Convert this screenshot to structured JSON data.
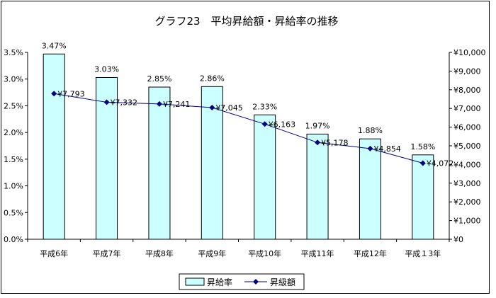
{
  "chart_data": {
    "type": "bar+line",
    "title": "グラフ23　平均昇給額・昇給率の推移",
    "categories": [
      "平成6年",
      "平成7年",
      "平成8年",
      "平成9年",
      "平成10年",
      "平成11年",
      "平成12年",
      "平成１3年"
    ],
    "series": [
      {
        "name": "昇給率",
        "type": "bar",
        "axis": "left",
        "values": [
          3.47,
          3.03,
          2.85,
          2.86,
          2.33,
          1.97,
          1.88,
          1.58
        ],
        "labels": [
          "3.47%",
          "3.03%",
          "2.85%",
          "2.86%",
          "2.33%",
          "1.97%",
          "1.88%",
          "1.58%"
        ],
        "color": "#ccffff"
      },
      {
        "name": "昇級額",
        "type": "line",
        "axis": "right",
        "values": [
          7793,
          7332,
          7241,
          7045,
          6163,
          5178,
          4854,
          4072
        ],
        "labels": [
          "¥7,793",
          "¥7,332",
          "¥7,241",
          "¥7,045",
          "¥6,163",
          "¥5,178",
          "¥4,854",
          "¥4,072"
        ],
        "color": "#000080"
      }
    ],
    "y_left": {
      "range": [
        0,
        3.5
      ],
      "ticks": [
        0,
        0.5,
        1.0,
        1.5,
        2.0,
        2.5,
        3.0,
        3.5
      ],
      "tick_labels": [
        "0.0%",
        "0.5%",
        "1.0%",
        "1.5%",
        "2.0%",
        "2.5%",
        "3.0%",
        "3.5%"
      ]
    },
    "y_right": {
      "range": [
        0,
        10000
      ],
      "ticks": [
        0,
        1000,
        2000,
        3000,
        4000,
        5000,
        6000,
        7000,
        8000,
        9000,
        10000
      ],
      "tick_labels": [
        "¥0",
        "¥1,000",
        "¥2,000",
        "¥3,000",
        "¥4,000",
        "¥5,000",
        "¥6,000",
        "¥7,000",
        "¥8,000",
        "¥9,000",
        "¥10,000"
      ]
    },
    "grid": false,
    "legend": {
      "position": "bottom",
      "entries": [
        "昇給率",
        "昇級額"
      ]
    }
  }
}
